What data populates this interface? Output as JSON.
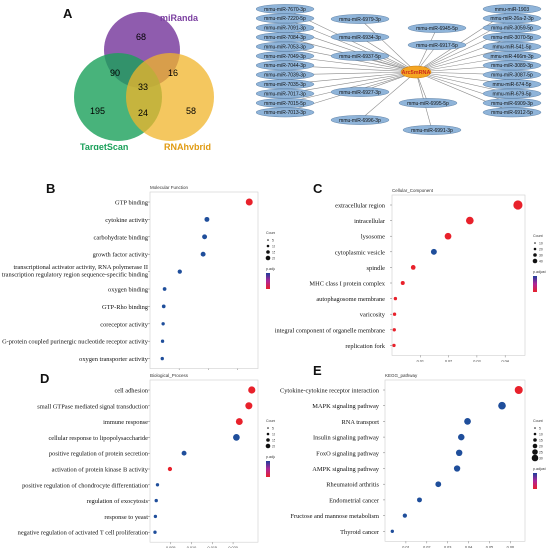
{
  "panel_letters": {
    "a": "A",
    "b": "B",
    "c": "C",
    "d": "D",
    "e": "E"
  },
  "venn": {
    "sets": [
      {
        "name": "miRanda",
        "color": "#7b3fa0"
      },
      {
        "name": "TargetScan",
        "color": "#1aa05a"
      },
      {
        "name": "RNAhybrid",
        "color": "#f0b429"
      }
    ],
    "regions": {
      "miRanda_only": "68",
      "TargetScan_only": "195",
      "RNAhybrid_only": "58",
      "miRanda_TargetScan": "90",
      "miRanda_RNAhybrid": "16",
      "TargetScan_RNAhybrid": "24",
      "all_three": "33"
    }
  },
  "network": {
    "hub": "Arc5mRNA",
    "hub_color": "#f5a623",
    "node_color": "#8fb4d9",
    "left_column": [
      "mmu-miR-7670-3p",
      "mmu-miR-7220-5p",
      "mmu-miR-7091-3p",
      "mmu-miR-7084-3p",
      "mmu-miR-7053-3p",
      "mmu-miR-7049-3p",
      "mmu-miR-7044-3p",
      "mmu-miR-7039-3p",
      "mmu-miR-7035-3p",
      "mmu-miR-7017-3p",
      "mmu-miR-7015-5p",
      "mmu-miR-7013-3p"
    ],
    "middle_nodes": [
      "mmu-miR-6979-3p",
      "mmu-miR-6934-3p",
      "mmu-miR-6937-5p",
      "mmu-miR-6927-3p",
      "mmu-miR-6996-3p",
      "mmu-miR-6991-3p"
    ],
    "right_inner": [
      "mmu-miR-6945-5p",
      "mmu-miR-6917-5p",
      "mmu-miR-6995-5p"
    ],
    "right_column": [
      "mmu-miR-1903",
      "mmu-miR-26a-2-3p",
      "mmu-miR-3059-5p",
      "mmu-miR-3070-5p",
      "mmu-miR-541-5p",
      "mmu-miR-466m-3p",
      "mmu-miR-3089-3p",
      "mmu-miR-3087-5p",
      "mmu-miR-674-5p",
      "mmu-miR-679-5p",
      "mmu-miR-6909-3p",
      "mmu-miR-6912-5p"
    ]
  },
  "chart_data": [
    {
      "type": "scatter",
      "panel": "B",
      "title": "Molecular Function",
      "xlabel": "GeneRatio",
      "xticks": [
        "0.01",
        "0.02",
        "0.03"
      ],
      "xlim": [
        0.0,
        0.037
      ],
      "size_legend_title": "Count",
      "size_legend_values": [
        "5",
        "10",
        "15",
        "20"
      ],
      "color_legend_title": "p.adjust",
      "categories": [
        "GTP binding",
        "cytokine activity",
        "carbohydrate binding",
        "growth factor activity",
        "transcriptional activator activity, RNA polymerase II transcription regulatory region sequence-specific binding",
        "oxygen binding",
        "GTP-Rho binding",
        "coreceptor activity",
        "G-protein coupled purinergic nucleotide receptor activity",
        "oxygen transporter activity"
      ],
      "x": [
        0.034,
        0.0195,
        0.0187,
        0.0182,
        0.0102,
        0.005,
        0.0047,
        0.0045,
        0.0043,
        0.0042
      ],
      "size": [
        22,
        8,
        8,
        8,
        5,
        3,
        3,
        2,
        2,
        2
      ],
      "color": [
        "#e8212b",
        "#1f4e9b",
        "#1f4e9b",
        "#1f4e9b",
        "#1f4e9b",
        "#1f4e9b",
        "#1f4e9b",
        "#1f4e9b",
        "#1f4e9b",
        "#1f4e9b"
      ]
    },
    {
      "type": "scatter",
      "panel": "C",
      "title": "Cellular_Component",
      "xlabel": "GeneRatio",
      "xticks": [
        "0.01",
        "0.02",
        "0.03",
        "0.04"
      ],
      "xlim": [
        0.0,
        0.047
      ],
      "size_legend_title": "Count",
      "size_legend_values": [
        "10",
        "20",
        "30",
        "40"
      ],
      "color_legend_title": "p.adjust",
      "categories": [
        "extracellular region",
        "intracellular",
        "lysosome",
        "cytoplasmic vesicle",
        "spindle",
        "MHC class I protein complex",
        "autophagosome membrane",
        "varicosity",
        "integral component of organelle membrane",
        "replication fork"
      ],
      "x": [
        0.0445,
        0.0275,
        0.0198,
        0.0148,
        0.0075,
        0.0038,
        0.0012,
        0.0009,
        0.0008,
        0.0007
      ],
      "size": [
        45,
        28,
        20,
        14,
        7,
        4,
        2,
        2,
        2,
        2
      ],
      "color": [
        "#e8212b",
        "#e8212b",
        "#e8212b",
        "#1f4e9b",
        "#e8212b",
        "#e8212b",
        "#e8212b",
        "#e8212b",
        "#e8212b",
        "#e8212b"
      ]
    },
    {
      "type": "scatter",
      "panel": "D",
      "title": "Biological_Process",
      "xlabel": "GeneRatio",
      "xticks": [
        "0.005",
        "0.010",
        "0.015",
        "0.020"
      ],
      "xlim": [
        0.0,
        0.026
      ],
      "size_legend_title": "Count",
      "size_legend_values": [
        "5",
        "10",
        "15",
        "20"
      ],
      "color_legend_title": "p.adjust",
      "categories": [
        "cell adhesion",
        "small GTPase mediated signal transduction",
        "immune response",
        "cellular response to lipopolysaccharide",
        "positive regulation of protein secretion",
        "activation of protein kinase B activity",
        "positive regulation of chondrocyte differentiation",
        "regulation of exocytosis",
        "response to yeast",
        "negative regulation of activated T cell proliferation"
      ],
      "x": [
        0.0245,
        0.0238,
        0.0215,
        0.0208,
        0.0082,
        0.0048,
        0.0018,
        0.0015,
        0.0013,
        0.0012
      ],
      "size": [
        24,
        23,
        21,
        20,
        8,
        5,
        2,
        2,
        2,
        2
      ],
      "color": [
        "#e8212b",
        "#e8212b",
        "#e8212b",
        "#1f4e9b",
        "#1f4e9b",
        "#e8212b",
        "#1f4e9b",
        "#1f4e9b",
        "#1f4e9b",
        "#1f4e9b"
      ]
    },
    {
      "type": "scatter",
      "panel": "E",
      "title": "KEGG_pathway",
      "xlabel": "GeneRatio",
      "xticks": [
        "0.01",
        "0.02",
        "0.03",
        "0.04",
        "0.05",
        "0.06"
      ],
      "xlim": [
        0.0,
        0.067
      ],
      "size_legend_title": "Count",
      "size_legend_values": [
        "5",
        "10",
        "15",
        "20",
        "25",
        "30"
      ],
      "color_legend_title": "p.adjust",
      "categories": [
        "Cytokine-cytokine receptor interaction",
        "MAPK signaling pathway",
        "RNA transport",
        "Insulin signaling pathway",
        "FoxO signaling pathway",
        "AMPK signaling pathway",
        "Rheumatoid arthritis",
        "Endometrial cancer",
        "Fructose and mannose metabolism",
        "Thyroid cancer"
      ],
      "x": [
        0.064,
        0.056,
        0.0395,
        0.0365,
        0.0355,
        0.0345,
        0.0255,
        0.0165,
        0.0095,
        0.0035
      ],
      "size": [
        32,
        28,
        20,
        18,
        18,
        17,
        13,
        8,
        5,
        2
      ],
      "color": [
        "#e8212b",
        "#1f4e9b",
        "#1f4e9b",
        "#1f4e9b",
        "#1f4e9b",
        "#1f4e9b",
        "#1f4e9b",
        "#1f4e9b",
        "#1f4e9b",
        "#1f4e9b"
      ]
    }
  ]
}
